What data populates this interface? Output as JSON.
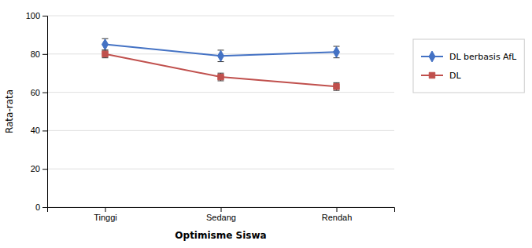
{
  "chart_data": {
    "type": "line",
    "xlabel": "Optimisme Siswa",
    "ylabel": "Rata-rata",
    "categories": [
      "Tinggi",
      "Sedang",
      "Rendah"
    ],
    "series": [
      {
        "name": "DL berbasis AfL",
        "color": "#4472C4",
        "marker": "diamond",
        "values": [
          85,
          79,
          81
        ],
        "errors": [
          3,
          3,
          3
        ]
      },
      {
        "name": "DL",
        "color": "#C0504D",
        "marker": "square",
        "values": [
          80,
          68,
          63
        ],
        "errors": [
          2,
          2,
          2
        ]
      }
    ],
    "ylim": [
      0,
      100
    ],
    "yticks": [
      0,
      20,
      40,
      60,
      80,
      100
    ],
    "grid": true,
    "legend": "right"
  }
}
